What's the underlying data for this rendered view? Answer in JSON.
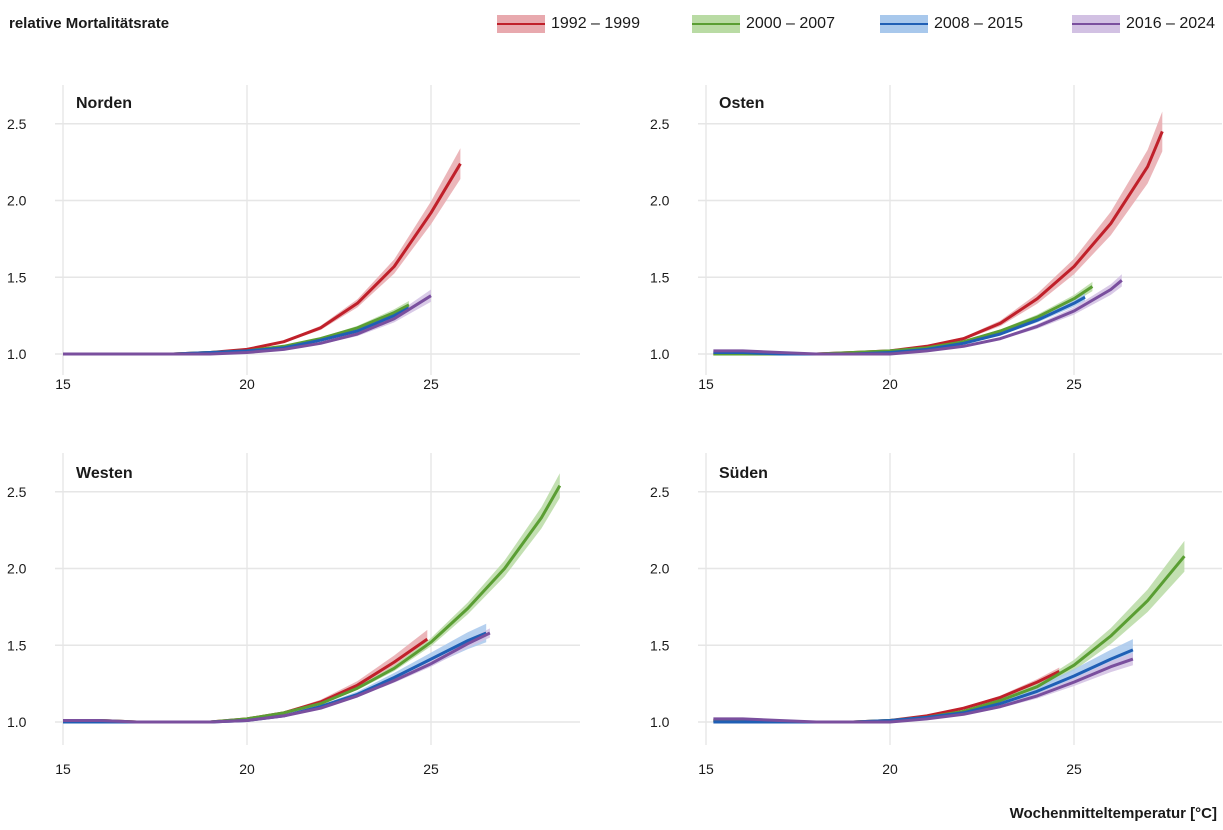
{
  "chart_data": {
    "type": "line",
    "ylabel": "relative Mortalitätsrate",
    "xlabel": "Wochenmitteltemperatur [°C]",
    "xlim": [
      15,
      29
    ],
    "ylim": [
      0.95,
      2.7
    ],
    "xticks": [
      15,
      20,
      25
    ],
    "yticks": [
      1.0,
      1.5,
      2.0,
      2.5
    ],
    "grid": true,
    "legend_position": "top-right",
    "legend": [
      {
        "name": "1992 – 1999",
        "color": "#c0202a",
        "band": "#e8a9ae"
      },
      {
        "name": "2000 – 2007",
        "color": "#5a9e33",
        "band": "#b9dba4"
      },
      {
        "name": "2008 – 2015",
        "color": "#1f5fb5",
        "band": "#a8c8ec"
      },
      {
        "name": "2016 – 2024",
        "color": "#7a4f9e",
        "band": "#d2c1e3"
      }
    ],
    "panels": [
      {
        "title": "Norden",
        "series": [
          {
            "name": "1992 – 1999",
            "x": [
              15,
              16,
              17,
              18,
              19,
              20,
              21,
              22,
              23,
              24,
              25,
              25.8
            ],
            "y": [
              1.0,
              1.0,
              1.0,
              1.0,
              1.01,
              1.03,
              1.08,
              1.17,
              1.33,
              1.57,
              1.92,
              2.24
            ],
            "band": 0.1
          },
          {
            "name": "2000 – 2007",
            "x": [
              15,
              16,
              17,
              18,
              19,
              20,
              21,
              22,
              23,
              24,
              24.4
            ],
            "y": [
              1.0,
              1.0,
              1.0,
              1.0,
              1.01,
              1.02,
              1.05,
              1.1,
              1.17,
              1.27,
              1.32
            ],
            "band": 0.025
          },
          {
            "name": "2008 – 2015",
            "x": [
              15,
              16,
              17,
              18,
              19,
              20,
              21,
              22,
              23,
              24,
              24.4
            ],
            "y": [
              1.0,
              1.0,
              1.0,
              1.0,
              1.01,
              1.02,
              1.04,
              1.09,
              1.15,
              1.25,
              1.3
            ],
            "band": 0.025
          },
          {
            "name": "2016 – 2024",
            "x": [
              15,
              16,
              17,
              18,
              19,
              20,
              21,
              22,
              23,
              24,
              25
            ],
            "y": [
              1.0,
              1.0,
              1.0,
              1.0,
              1.0,
              1.01,
              1.03,
              1.07,
              1.13,
              1.23,
              1.38
            ],
            "band": 0.04
          }
        ]
      },
      {
        "title": "Osten",
        "series": [
          {
            "name": "1992 – 1999",
            "x": [
              15.2,
              16,
              17,
              18,
              19,
              20,
              21,
              22,
              23,
              24,
              25,
              26,
              27,
              27.4
            ],
            "y": [
              1.0,
              1.0,
              1.0,
              1.0,
              1.01,
              1.02,
              1.05,
              1.1,
              1.2,
              1.36,
              1.57,
              1.85,
              2.22,
              2.45
            ],
            "band": 0.13
          },
          {
            "name": "2000 – 2007",
            "x": [
              15.2,
              16,
              17,
              18,
              19,
              20,
              21,
              22,
              23,
              24,
              25,
              25.5
            ],
            "y": [
              1.0,
              1.0,
              1.0,
              1.0,
              1.01,
              1.02,
              1.04,
              1.08,
              1.15,
              1.24,
              1.36,
              1.44
            ],
            "band": 0.03
          },
          {
            "name": "2008 – 2015",
            "x": [
              15.2,
              16,
              17,
              18,
              19,
              20,
              21,
              22,
              23,
              24,
              25,
              25.3
            ],
            "y": [
              1.01,
              1.01,
              1.0,
              1.0,
              1.0,
              1.01,
              1.03,
              1.07,
              1.13,
              1.22,
              1.33,
              1.37
            ],
            "band": 0.025
          },
          {
            "name": "2016 – 2024",
            "x": [
              15.2,
              16,
              17,
              18,
              19,
              20,
              21,
              22,
              23,
              24,
              25,
              26,
              26.3
            ],
            "y": [
              1.02,
              1.02,
              1.01,
              1.0,
              1.0,
              1.0,
              1.02,
              1.05,
              1.1,
              1.18,
              1.28,
              1.42,
              1.48
            ],
            "band": 0.04
          }
        ]
      },
      {
        "title": "Westen",
        "series": [
          {
            "name": "1992 – 1999",
            "x": [
              15,
              16,
              17,
              18,
              19,
              20,
              21,
              22,
              23,
              24,
              24.9
            ],
            "y": [
              1.01,
              1.01,
              1.0,
              1.0,
              1.0,
              1.02,
              1.06,
              1.13,
              1.24,
              1.39,
              1.54
            ],
            "band": 0.06
          },
          {
            "name": "2000 – 2007",
            "x": [
              15,
              16,
              17,
              18,
              19,
              20,
              21,
              22,
              23,
              24,
              25,
              26,
              27,
              28,
              28.5
            ],
            "y": [
              1.01,
              1.01,
              1.0,
              1.0,
              1.0,
              1.02,
              1.06,
              1.12,
              1.22,
              1.35,
              1.52,
              1.74,
              2.0,
              2.33,
              2.54
            ],
            "band": 0.08
          },
          {
            "name": "2008 – 2015",
            "x": [
              15,
              16,
              17,
              18,
              19,
              20,
              21,
              22,
              23,
              24,
              25,
              26,
              26.5
            ],
            "y": [
              1.0,
              1.0,
              1.0,
              1.0,
              1.0,
              1.01,
              1.04,
              1.1,
              1.18,
              1.29,
              1.41,
              1.53,
              1.58
            ],
            "band": 0.06
          },
          {
            "name": "2016 – 2024",
            "x": [
              15,
              16,
              17,
              18,
              19,
              20,
              21,
              22,
              23,
              24,
              25,
              26,
              26.6
            ],
            "y": [
              1.01,
              1.01,
              1.0,
              1.0,
              1.0,
              1.01,
              1.04,
              1.09,
              1.17,
              1.27,
              1.38,
              1.51,
              1.58
            ],
            "band": 0.03
          }
        ]
      },
      {
        "title": "Süden",
        "series": [
          {
            "name": "1992 – 1999",
            "x": [
              15.2,
              16,
              17,
              18,
              19,
              20,
              21,
              22,
              23,
              24,
              24.6
            ],
            "y": [
              1.01,
              1.01,
              1.0,
              1.0,
              1.0,
              1.01,
              1.04,
              1.09,
              1.16,
              1.26,
              1.33
            ],
            "band": 0.025
          },
          {
            "name": "2000 – 2007",
            "x": [
              15.2,
              16,
              17,
              18,
              19,
              20,
              21,
              22,
              23,
              24,
              25,
              26,
              27,
              28
            ],
            "y": [
              1.01,
              1.01,
              1.0,
              1.0,
              1.0,
              1.01,
              1.03,
              1.07,
              1.14,
              1.23,
              1.37,
              1.56,
              1.79,
              2.08
            ],
            "band": 0.1
          },
          {
            "name": "2008 – 2015",
            "x": [
              15.2,
              16,
              17,
              18,
              19,
              20,
              21,
              22,
              23,
              24,
              25,
              26,
              26.6
            ],
            "y": [
              1.0,
              1.0,
              1.0,
              1.0,
              1.0,
              1.01,
              1.03,
              1.06,
              1.12,
              1.2,
              1.3,
              1.41,
              1.47
            ],
            "band": 0.07
          },
          {
            "name": "2016 – 2024",
            "x": [
              15.2,
              16,
              17,
              18,
              19,
              20,
              21,
              22,
              23,
              24,
              25,
              26,
              26.6
            ],
            "y": [
              1.02,
              1.02,
              1.01,
              1.0,
              1.0,
              1.0,
              1.02,
              1.05,
              1.1,
              1.17,
              1.26,
              1.36,
              1.41
            ],
            "band": 0.04
          }
        ]
      }
    ]
  }
}
